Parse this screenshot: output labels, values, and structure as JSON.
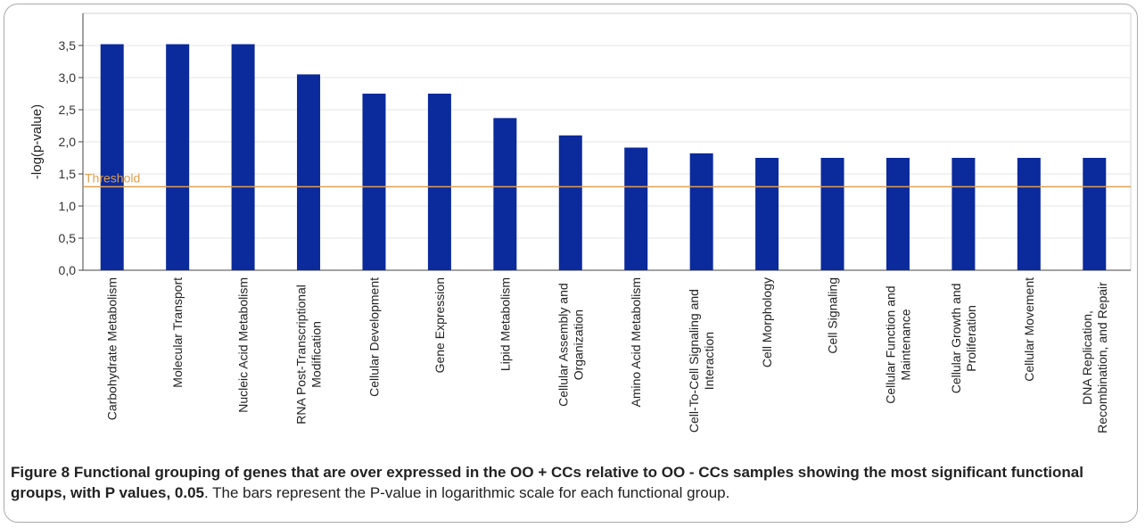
{
  "chart_data": {
    "type": "bar",
    "ylabel": "-log(p-value)",
    "ylim": [
      0,
      3.5
    ],
    "yticks": [
      "0,0",
      "0,5",
      "1,0",
      "1,5",
      "2,0",
      "2,5",
      "3,0",
      "3,5"
    ],
    "grid": true,
    "threshold": {
      "label": "Threshold",
      "value": 1.3
    },
    "categories": [
      [
        "Carbohydrate Metabolism"
      ],
      [
        "Molecular Transport"
      ],
      [
        "Nucleic Acid Metabolism"
      ],
      [
        "RNA Post-Transcriptional",
        "Modification"
      ],
      [
        "Cellular Development"
      ],
      [
        "Gene Expression"
      ],
      [
        "Lipid Metabolism"
      ],
      [
        "Cellular Assembly and",
        "Organization"
      ],
      [
        "Amino Acid Metabolism"
      ],
      [
        "Cell-To-Cell Signaling and",
        "Interaction"
      ],
      [
        "Cell Morphology"
      ],
      [
        "Cell Signaling"
      ],
      [
        "Cellular Function and",
        "Maintenance"
      ],
      [
        "Cellular Growth and",
        "Proliferation"
      ],
      [
        "Cellular Movement"
      ],
      [
        "DNA Replication,",
        "Recombination, and Repair"
      ]
    ],
    "values": [
      3.52,
      3.52,
      3.52,
      3.05,
      2.75,
      2.75,
      2.37,
      2.1,
      1.91,
      1.82,
      1.75,
      1.75,
      1.75,
      1.75,
      1.75,
      1.75
    ],
    "colors": {
      "bar": "#0b2a9c",
      "threshold": "#e0a050",
      "grid": "#e6e6e6"
    }
  },
  "caption": {
    "bold": "Figure 8 Functional grouping of genes that are over expressed in the OO + CCs relative to OO - CCs samples showing the most significant functional groups, with P values, 0.05",
    "rest": ". The bars represent the P-value in logarithmic scale for each functional group."
  }
}
